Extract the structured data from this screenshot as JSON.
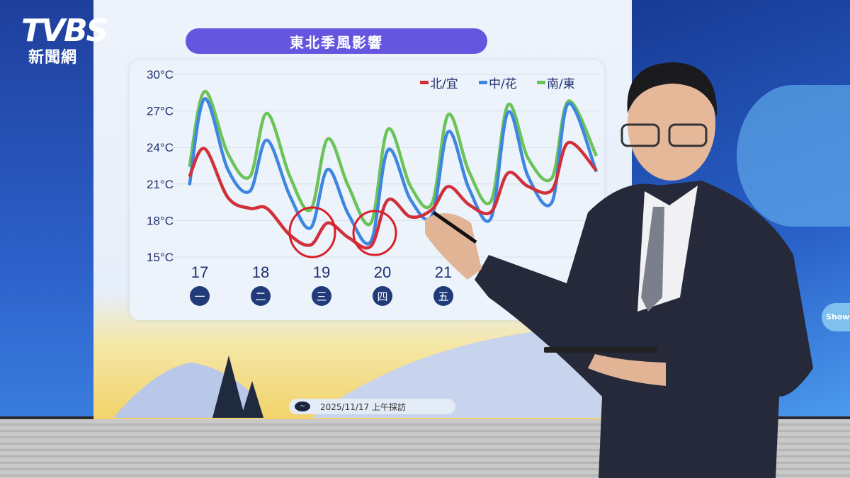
{
  "broadcast": {
    "logo_text": "TVBS",
    "logo_subtitle": "新聞網",
    "corner_badge": "Show",
    "footer_date": "2025/11/17 上午採訪"
  },
  "chart_data": {
    "type": "line",
    "title": "東北季風影響",
    "xlabel": "",
    "ylabel": "",
    "y_ticks": [
      "30°C",
      "27°C",
      "24°C",
      "21°C",
      "18°C",
      "15°C"
    ],
    "y_tick_values": [
      30,
      27,
      24,
      21,
      18,
      15
    ],
    "ylim": [
      15,
      30
    ],
    "xlim": [
      16.68,
      23.36
    ],
    "grid": "horizontal",
    "legend_placement": "top-right",
    "x_ticks": [
      {
        "day": 17,
        "label": "17",
        "weekday": "一"
      },
      {
        "day": 18,
        "label": "18",
        "weekday": "二"
      },
      {
        "day": 19,
        "label": "19",
        "weekday": "三"
      },
      {
        "day": 20,
        "label": "20",
        "weekday": "四"
      },
      {
        "day": 21,
        "label": "21",
        "weekday": "五"
      }
    ],
    "x": [
      16.68,
      16.93,
      17.31,
      17.67,
      17.95,
      18.33,
      18.67,
      18.95,
      19.29,
      19.66,
      19.94,
      20.31,
      20.66,
      20.93,
      21.27,
      21.63,
      21.91,
      22.24,
      22.63,
      22.9,
      23.36
    ],
    "series": [
      {
        "name": "北/宜",
        "color": "#d0303a",
        "values": [
          21.6,
          23.9,
          19.9,
          19.0,
          19.0,
          16.8,
          16.0,
          17.8,
          16.6,
          15.9,
          19.7,
          18.3,
          18.9,
          20.8,
          19.3,
          18.7,
          21.9,
          20.8,
          20.5,
          24.4,
          22.1
        ]
      },
      {
        "name": "中/花",
        "color": "#3f86e0",
        "values": [
          20.9,
          28.0,
          22.2,
          20.4,
          24.6,
          20.0,
          17.4,
          22.2,
          18.5,
          16.3,
          23.8,
          19.7,
          18.4,
          25.3,
          20.6,
          18.2,
          26.9,
          21.6,
          19.5,
          27.6,
          22.0
        ]
      },
      {
        "name": "南/東",
        "color": "#6cc35a",
        "values": [
          22.4,
          28.6,
          23.5,
          21.6,
          26.8,
          21.6,
          18.9,
          24.7,
          20.8,
          17.8,
          25.5,
          20.8,
          19.4,
          26.7,
          22.0,
          19.6,
          27.5,
          23.1,
          21.5,
          27.8,
          23.3
        ]
      }
    ],
    "annotations": [
      {
        "type": "hand-drawn-circle",
        "color": "#d8202c",
        "around_day": 18.8,
        "around_value": 17
      },
      {
        "type": "hand-drawn-circle",
        "color": "#d8202c",
        "around_day": 19.75,
        "around_value": 16.8
      }
    ]
  }
}
